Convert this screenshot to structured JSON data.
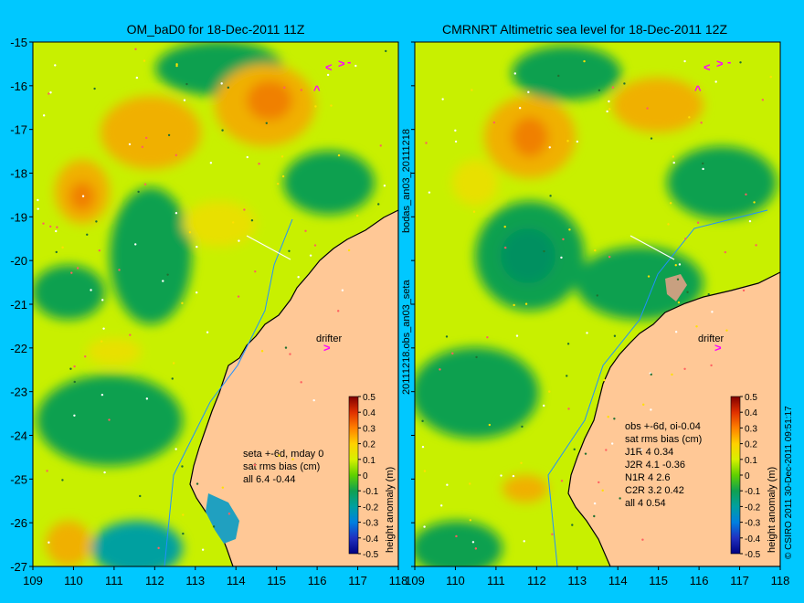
{
  "left_panel": {
    "title": "OM_baD0 for 18-Dec-2011 11Z",
    "stats": [
      "seta +-6d, mday 0",
      "sat rms bias (cm)",
      "all 6.4 -0.44"
    ]
  },
  "right_panel": {
    "title": "CMRNRT Altimetric sea level  for 18-Dec-2011 12Z",
    "stats": [
      "obs +-6d, oi-0.04",
      "sat rms bias (cm)",
      "J1R  4 0.34",
      "J2R  4.1 -0.36",
      "N1R  4 2.6",
      "C2R  3.2 0.42",
      "all 4 0.54"
    ]
  },
  "drifter_label": "drifter",
  "vertical_label_top": "bodas_an03_20111218",
  "vertical_label_bottom": "20111218.obs_an03_seta",
  "copyright": "© CSIRO 2011  30-Dec-2011 09:51:17",
  "colorbar": {
    "title": "height anomaly (m)",
    "ticks": [
      "0.5",
      "0.4",
      "0.3",
      "0.2",
      "0.1",
      "0",
      "-0.1",
      "-0.2",
      "-0.3",
      "-0.4",
      "-0.5"
    ]
  },
  "axes": {
    "lat_ticks": [
      "-15",
      "-16",
      "-17",
      "-18",
      "-19",
      "-20",
      "-21",
      "-22",
      "-23",
      "-24",
      "-25",
      "-26",
      "-27"
    ],
    "lon_ticks": [
      "109",
      "110",
      "111",
      "112",
      "113",
      "114",
      "115",
      "116",
      "117",
      "118"
    ]
  },
  "colors": {
    "background": "#00c8ff",
    "land": "#ffc896",
    "ocean_base": "#c8f000",
    "high": "#f0a000",
    "low": "#10a050",
    "marker": "#ff00ff"
  }
}
